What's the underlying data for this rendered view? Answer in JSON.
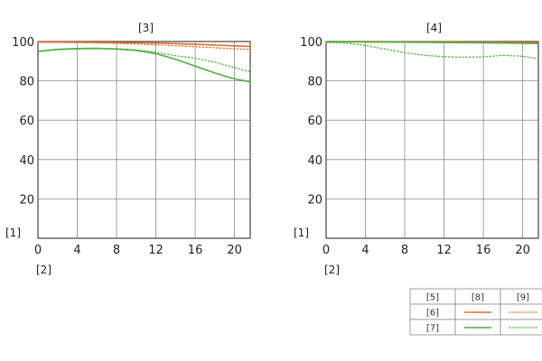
{
  "chart_data": [
    {
      "type": "line",
      "title": "[3]",
      "ylabel": "[1]",
      "xlabel": "[2]",
      "xlim": [
        0,
        21.6
      ],
      "ylim": [
        0,
        100
      ],
      "xticks": [
        0,
        4,
        8,
        12,
        16,
        20
      ],
      "yticks": [
        20,
        40,
        60,
        80,
        100
      ],
      "grid": true,
      "series": [
        {
          "name": "[6] [8]",
          "color": "#e06a2a",
          "style": "solid",
          "x": [
            0,
            4,
            8,
            12,
            16,
            20,
            21.6
          ],
          "y": [
            99.8,
            99.7,
            99.5,
            99.2,
            98.6,
            97.8,
            97.5
          ]
        },
        {
          "name": "[6] [9]",
          "color": "#e06a2a",
          "style": "dotted",
          "x": [
            0,
            4,
            8,
            12,
            16,
            20,
            21.6
          ],
          "y": [
            99.7,
            99.5,
            99.1,
            98.3,
            97.4,
            96.3,
            96.0
          ]
        },
        {
          "name": "[7] [8]",
          "color": "#4caf3a",
          "style": "solid",
          "x": [
            0,
            2,
            4,
            6,
            8,
            10,
            12,
            14,
            16,
            18,
            20,
            21.6
          ],
          "y": [
            95.0,
            96.0,
            96.4,
            96.5,
            96.2,
            95.5,
            93.8,
            91.0,
            87.5,
            84.0,
            81.0,
            79.5
          ]
        },
        {
          "name": "[7] [9]",
          "color": "#4caf3a",
          "style": "dotted",
          "x": [
            0,
            2,
            4,
            6,
            8,
            10,
            12,
            14,
            16,
            18,
            20,
            21.6
          ],
          "y": [
            95.0,
            95.8,
            96.2,
            96.4,
            96.3,
            95.8,
            94.5,
            92.8,
            91.5,
            89.5,
            86.8,
            84.5
          ]
        }
      ]
    },
    {
      "type": "line",
      "title": "[4]",
      "ylabel": "[1]",
      "xlabel": "[2]",
      "xlim": [
        0,
        21.6
      ],
      "ylim": [
        0,
        100
      ],
      "xticks": [
        0,
        4,
        8,
        12,
        16,
        20
      ],
      "yticks": [
        20,
        40,
        60,
        80,
        100
      ],
      "grid": true,
      "series": [
        {
          "name": "[6] [8]",
          "color": "#e06a2a",
          "style": "solid",
          "x": [
            0,
            4,
            8,
            12,
            16,
            20,
            21.6
          ],
          "y": [
            99.9,
            99.9,
            99.8,
            99.8,
            99.7,
            99.6,
            99.5
          ]
        },
        {
          "name": "[6] [9]",
          "color": "#e06a2a",
          "style": "dotted",
          "x": [
            0,
            4,
            8,
            12,
            16,
            20,
            21.6
          ],
          "y": [
            99.8,
            99.7,
            99.6,
            99.5,
            99.4,
            99.2,
            99.1
          ]
        },
        {
          "name": "[7] [8]",
          "color": "#4caf3a",
          "style": "solid",
          "x": [
            0,
            4,
            8,
            12,
            16,
            20,
            21.6
          ],
          "y": [
            99.9,
            99.8,
            99.7,
            99.5,
            99.3,
            99.1,
            99.0
          ]
        },
        {
          "name": "[7] [9]",
          "color": "#4caf3a",
          "style": "dotted",
          "x": [
            0,
            2,
            4,
            6,
            8,
            10,
            12,
            14,
            16,
            18,
            20,
            21.6
          ],
          "y": [
            99.5,
            99.2,
            98.0,
            96.2,
            94.3,
            93.0,
            92.3,
            92.0,
            92.2,
            93.0,
            92.5,
            91.3
          ]
        }
      ]
    }
  ],
  "legend": {
    "header": [
      "[5]",
      "[8]",
      "[9]"
    ],
    "rows": [
      {
        "label": "[6]",
        "color": "#e06a2a"
      },
      {
        "label": "[7]",
        "color": "#4caf3a"
      }
    ]
  }
}
